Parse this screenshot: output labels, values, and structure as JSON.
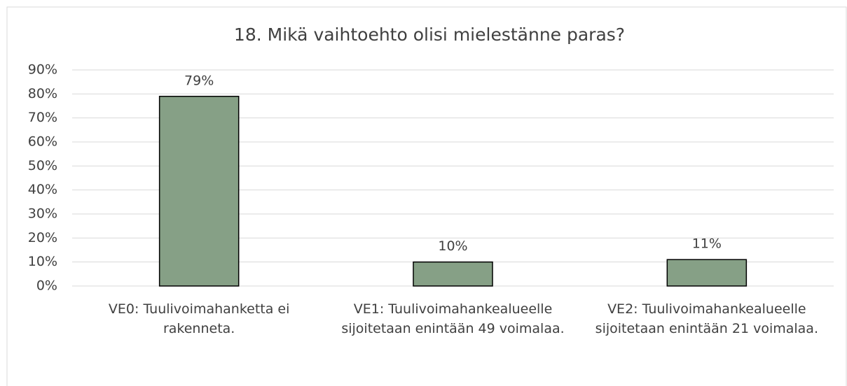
{
  "chart_data": {
    "type": "bar",
    "title": "18. Mikä vaihtoehto olisi mielestänne paras?",
    "categories": [
      "VE0: Tuulivoimahanketta ei rakenneta.",
      "VE1: Tuulivoimahankealueelle sijoitetaan enintään 49 voimalaa.",
      "VE2: Tuulivoimahankealueelle sijoitetaan enintään 21 voimalaa."
    ],
    "values": [
      79,
      10,
      11
    ],
    "value_labels": [
      "79%",
      "10%",
      "11%"
    ],
    "color": "#86a086",
    "ylim": [
      0,
      90
    ],
    "yticks": [
      {
        "value": 0,
        "label": "0%"
      },
      {
        "value": 10,
        "label": "10%"
      },
      {
        "value": 20,
        "label": "20%"
      },
      {
        "value": 30,
        "label": "30%"
      },
      {
        "value": 40,
        "label": "40%"
      },
      {
        "value": 50,
        "label": "50%"
      },
      {
        "value": 60,
        "label": "60%"
      },
      {
        "value": 70,
        "label": "70%"
      },
      {
        "value": 80,
        "label": "80%"
      },
      {
        "value": 90,
        "label": "90%"
      }
    ],
    "grid": true
  }
}
